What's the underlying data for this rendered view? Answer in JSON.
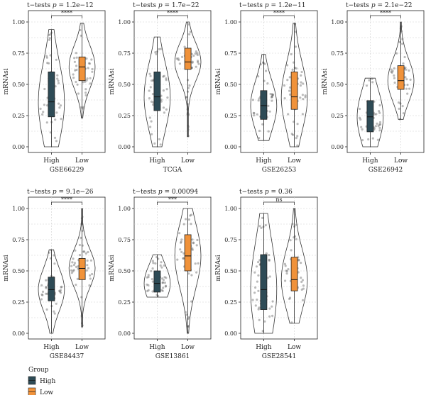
{
  "legend": {
    "title": "Group",
    "items": [
      {
        "label": "High",
        "color": "#2e4b56"
      },
      {
        "label": "Low",
        "color": "#f0923a"
      }
    ]
  },
  "chart_data": [
    {
      "type": "violin-box",
      "title": "t−tests p = 1.2e−12",
      "xlabel": "GSE66229",
      "ylabel": "mRNAsi",
      "categories": [
        "High",
        "Low"
      ],
      "significance": "****",
      "ylim": [
        0,
        1
      ],
      "yticks": [
        "0.00",
        "0.25",
        "0.50",
        "0.75",
        "1.00"
      ],
      "grid": true,
      "series": [
        {
          "name": "High",
          "color": "#2e4b56",
          "min": 0.0,
          "q1": 0.24,
          "median": 0.36,
          "q3": 0.6,
          "max": 0.94
        },
        {
          "name": "Low",
          "color": "#f0923a",
          "min": 0.23,
          "q1": 0.53,
          "median": 0.64,
          "q3": 0.72,
          "max": 0.99
        }
      ]
    },
    {
      "type": "violin-box",
      "title": "t−tests p = 1.7e−22",
      "xlabel": "TCGA",
      "ylabel": "mRNAsi",
      "categories": [
        "High",
        "Low"
      ],
      "significance": "****",
      "ylim": [
        0,
        1
      ],
      "yticks": [
        "0.00",
        "0.25",
        "0.50",
        "0.75",
        "1.00"
      ],
      "grid": true,
      "series": [
        {
          "name": "High",
          "color": "#2e4b56",
          "min": 0.0,
          "q1": 0.29,
          "median": 0.4,
          "q3": 0.6,
          "max": 0.88
        },
        {
          "name": "Low",
          "color": "#f0923a",
          "min": 0.08,
          "q1": 0.62,
          "median": 0.68,
          "q3": 0.79,
          "max": 1.0
        }
      ]
    },
    {
      "type": "violin-box",
      "title": "t−tests p = 1.2e−11",
      "xlabel": "GSE26253",
      "ylabel": "mRNAsi",
      "categories": [
        "High",
        "Low"
      ],
      "significance": "****",
      "ylim": [
        0,
        1
      ],
      "yticks": [
        "0.00",
        "0.25",
        "0.50",
        "0.75",
        "1.00"
      ],
      "grid": true,
      "series": [
        {
          "name": "High",
          "color": "#2e4b56",
          "min": 0.05,
          "q1": 0.22,
          "median": 0.33,
          "q3": 0.45,
          "max": 0.74
        },
        {
          "name": "Low",
          "color": "#f0923a",
          "min": 0.0,
          "q1": 0.3,
          "median": 0.4,
          "q3": 0.6,
          "max": 0.99
        }
      ]
    },
    {
      "type": "violin-box",
      "title": "t−tests p = 2.1e−22",
      "xlabel": "GSE26942",
      "ylabel": "mRNAsi",
      "categories": [
        "High",
        "Low"
      ],
      "significance": "****",
      "ylim": [
        0,
        1
      ],
      "yticks": [
        "0.00",
        "0.25",
        "0.50",
        "0.75",
        "1.00"
      ],
      "grid": true,
      "series": [
        {
          "name": "High",
          "color": "#2e4b56",
          "min": 0.0,
          "q1": 0.12,
          "median": 0.24,
          "q3": 0.37,
          "max": 0.55
        },
        {
          "name": "Low",
          "color": "#f0923a",
          "min": 0.22,
          "q1": 0.46,
          "median": 0.53,
          "q3": 0.65,
          "max": 1.0
        }
      ]
    },
    {
      "type": "violin-box",
      "title": "t−tests p = 9.1e−26",
      "xlabel": "GSE84437",
      "ylabel": "mRNAsi",
      "categories": [
        "High",
        "Low"
      ],
      "significance": "****",
      "ylim": [
        0,
        1
      ],
      "yticks": [
        "0.00",
        "0.25",
        "0.50",
        "0.75",
        "1.00"
      ],
      "grid": true,
      "series": [
        {
          "name": "High",
          "color": "#2e4b56",
          "min": 0.0,
          "q1": 0.26,
          "median": 0.35,
          "q3": 0.45,
          "max": 0.67
        },
        {
          "name": "Low",
          "color": "#f0923a",
          "min": 0.05,
          "q1": 0.43,
          "median": 0.52,
          "q3": 0.6,
          "max": 1.0
        }
      ]
    },
    {
      "type": "violin-box",
      "title": "t−tests p = 0.00094",
      "xlabel": "GSE13861",
      "ylabel": "mRNAsi",
      "categories": [
        "High",
        "Low"
      ],
      "significance": "***",
      "ylim": [
        0,
        1
      ],
      "yticks": [
        "0.00",
        "0.25",
        "0.50",
        "0.75",
        "1.00"
      ],
      "grid": true,
      "series": [
        {
          "name": "High",
          "color": "#2e4b56",
          "min": 0.29,
          "q1": 0.33,
          "median": 0.4,
          "q3": 0.5,
          "max": 0.63
        },
        {
          "name": "Low",
          "color": "#f0923a",
          "min": 0.0,
          "q1": 0.5,
          "median": 0.62,
          "q3": 0.79,
          "max": 1.0
        }
      ]
    },
    {
      "type": "violin-box",
      "title": "t−tests p = 0.36",
      "xlabel": "GSE28541",
      "ylabel": "mRNAsi",
      "categories": [
        "High",
        "Low"
      ],
      "significance": "ns",
      "ylim": [
        0,
        1
      ],
      "yticks": [
        "0.00",
        "0.25",
        "0.50",
        "0.75",
        "1.00"
      ],
      "grid": true,
      "series": [
        {
          "name": "High",
          "color": "#2e4b56",
          "min": 0.0,
          "q1": 0.19,
          "median": 0.35,
          "q3": 0.63,
          "max": 0.96
        },
        {
          "name": "Low",
          "color": "#f0923a",
          "min": 0.08,
          "q1": 0.34,
          "median": 0.43,
          "q3": 0.61,
          "max": 1.0
        }
      ]
    }
  ]
}
